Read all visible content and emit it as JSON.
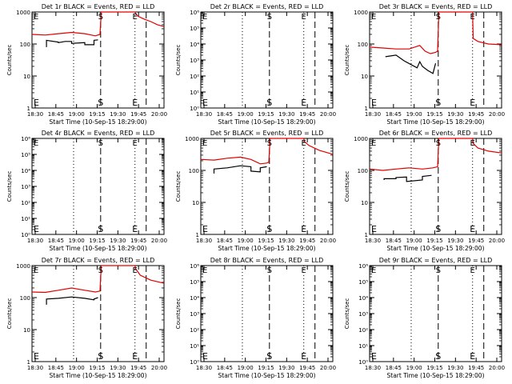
{
  "figure": {
    "x_ticks": [
      "18:30",
      "18:45",
      "19:00",
      "19:15",
      "19:30",
      "19:45",
      "20:00"
    ],
    "xlabel": "Start Time (10-Sep-15 18:29:00)",
    "ylabel": "Counts/sec",
    "colors": {
      "events": "#000000",
      "lld": "#e00000",
      "frame": "#000000"
    },
    "markers": {
      "start": "S",
      "end": "E"
    }
  },
  "chart_data": [
    {
      "type": "line",
      "title": "Det 1r BLACK = Events, RED = LLD",
      "log": true,
      "ylim": [
        1,
        1000
      ],
      "ytick_labels": [
        "1",
        "10",
        "100",
        "1000"
      ],
      "dotted_x": [
        0.0,
        0.315,
        0.78
      ],
      "dash_x": [
        0.52,
        0.865
      ],
      "markers": {
        "start": {
          "x": 0.52,
          "y": 1
        },
        "end": {
          "x": 0.78,
          "y": 1
        }
      },
      "series": [
        {
          "name": "LLD",
          "color": "#e00000",
          "points": [
            [
              0,
              200
            ],
            [
              0.1,
              190
            ],
            [
              0.2,
              210
            ],
            [
              0.3,
              230
            ],
            [
              0.4,
              210
            ],
            [
              0.48,
              180
            ],
            [
              0.515,
              200
            ],
            [
              0.525,
              1000
            ],
            [
              0.78,
              1000
            ],
            [
              0.785,
              900
            ],
            [
              0.8,
              750
            ],
            [
              0.85,
              600
            ],
            [
              0.9,
              500
            ],
            [
              0.95,
              400
            ],
            [
              1.0,
              350
            ]
          ]
        },
        {
          "name": "Events",
          "color": "#000000",
          "points": [
            [
              0.11,
              80
            ],
            [
              0.11,
              130
            ],
            [
              0.2,
              115
            ],
            [
              0.2,
              110
            ],
            [
              0.25,
              120
            ],
            [
              0.3,
              120
            ],
            [
              0.3,
              105
            ],
            [
              0.4,
              110
            ],
            [
              0.4,
              95
            ],
            [
              0.47,
              95
            ],
            [
              0.47,
              130
            ],
            [
              0.5,
              135
            ]
          ]
        }
      ]
    },
    {
      "type": "line",
      "title": "Det 2r BLACK = Events, RED = LLD",
      "log": true,
      "ylim": [
        1,
        1000000
      ],
      "ytick_labels": [
        "10⁰",
        "10¹",
        "10²",
        "10³",
        "10⁴",
        "10⁵",
        "10⁶"
      ],
      "dotted_x": [
        0.0,
        0.315,
        0.78
      ],
      "dash_x": [
        0.52,
        0.865
      ],
      "markers": {
        "start": {
          "x": 0.52,
          "y": 1
        },
        "end": {
          "x": 0.78,
          "y": 1
        }
      },
      "series": []
    },
    {
      "type": "line",
      "title": "Det 3r BLACK = Events, RED = LLD",
      "log": true,
      "ylim": [
        1,
        1000
      ],
      "ytick_labels": [
        "1",
        "10",
        "100",
        "1000"
      ],
      "dotted_x": [
        0.0,
        0.315,
        0.78
      ],
      "dash_x": [
        0.52,
        0.865
      ],
      "markers": {
        "start": {
          "x": 0.52,
          "y": 1
        },
        "end": {
          "x": 0.78,
          "y": 1
        }
      },
      "series": [
        {
          "name": "LLD",
          "color": "#e00000",
          "points": [
            [
              0,
              80
            ],
            [
              0.1,
              75
            ],
            [
              0.2,
              70
            ],
            [
              0.3,
              70
            ],
            [
              0.38,
              90
            ],
            [
              0.42,
              60
            ],
            [
              0.46,
              50
            ],
            [
              0.5,
              55
            ],
            [
              0.515,
              60
            ],
            [
              0.525,
              1000
            ],
            [
              0.78,
              1000
            ],
            [
              0.785,
              150
            ],
            [
              0.82,
              120
            ],
            [
              0.9,
              100
            ],
            [
              1.0,
              95
            ]
          ]
        },
        {
          "name": "Events",
          "color": "#000000",
          "points": [
            [
              0.12,
              40
            ],
            [
              0.2,
              45
            ],
            [
              0.26,
              30
            ],
            [
              0.32,
              22
            ],
            [
              0.36,
              18
            ],
            [
              0.38,
              28
            ],
            [
              0.4,
              20
            ],
            [
              0.44,
              15
            ],
            [
              0.48,
              12
            ],
            [
              0.5,
              25
            ]
          ]
        }
      ]
    },
    {
      "type": "line",
      "title": "Det 4r BLACK = Events, RED = LLD",
      "log": true,
      "ylim": [
        1,
        1000000
      ],
      "ytick_labels": [
        "10⁰",
        "10¹",
        "10²",
        "10³",
        "10⁴",
        "10⁵",
        "10⁶"
      ],
      "dotted_x": [
        0.0,
        0.315,
        0.78
      ],
      "dash_x": [
        0.52,
        0.865
      ],
      "markers": {
        "start": {
          "x": 0.52,
          "y": 1
        },
        "end": {
          "x": 0.78,
          "y": 1
        }
      },
      "series": []
    },
    {
      "type": "line",
      "title": "Det 5r BLACK = Events, RED = LLD",
      "log": true,
      "ylim": [
        1,
        1000
      ],
      "ytick_labels": [
        "1",
        "10",
        "100",
        "1000"
      ],
      "dotted_x": [
        0.0,
        0.315,
        0.78
      ],
      "dash_x": [
        0.52,
        0.865
      ],
      "markers": {
        "start": {
          "x": 0.52,
          "y": 1
        },
        "end": {
          "x": 0.78,
          "y": 1
        }
      },
      "series": [
        {
          "name": "LLD",
          "color": "#e00000",
          "points": [
            [
              0,
              220
            ],
            [
              0.1,
              210
            ],
            [
              0.2,
              240
            ],
            [
              0.3,
              260
            ],
            [
              0.38,
              220
            ],
            [
              0.45,
              160
            ],
            [
              0.5,
              170
            ],
            [
              0.515,
              180
            ],
            [
              0.525,
              1000
            ],
            [
              0.78,
              1000
            ],
            [
              0.785,
              800
            ],
            [
              0.82,
              600
            ],
            [
              0.9,
              420
            ],
            [
              1.0,
              320
            ]
          ]
        },
        {
          "name": "Events",
          "color": "#000000",
          "points": [
            [
              0.1,
              80
            ],
            [
              0.1,
              110
            ],
            [
              0.2,
              120
            ],
            [
              0.3,
              140
            ],
            [
              0.38,
              130
            ],
            [
              0.38,
              95
            ],
            [
              0.45,
              90
            ],
            [
              0.45,
              120
            ],
            [
              0.5,
              130
            ]
          ]
        }
      ]
    },
    {
      "type": "line",
      "title": "Det 6r BLACK = Events, RED = LLD",
      "log": true,
      "ylim": [
        1,
        1000
      ],
      "ytick_labels": [
        "1",
        "10",
        "100",
        "1000"
      ],
      "dotted_x": [
        0.0,
        0.315,
        0.78
      ],
      "dash_x": [
        0.52,
        0.865
      ],
      "markers": {
        "start": {
          "x": 0.52,
          "y": 1
        },
        "end": {
          "x": 0.78,
          "y": 1
        }
      },
      "series": [
        {
          "name": "LLD",
          "color": "#e00000",
          "points": [
            [
              0,
              110
            ],
            [
              0.1,
              100
            ],
            [
              0.2,
              110
            ],
            [
              0.3,
              120
            ],
            [
              0.4,
              110
            ],
            [
              0.48,
              120
            ],
            [
              0.515,
              130
            ],
            [
              0.525,
              1000
            ],
            [
              0.78,
              1000
            ],
            [
              0.785,
              700
            ],
            [
              0.82,
              500
            ],
            [
              0.9,
              400
            ],
            [
              1.0,
              350
            ]
          ]
        },
        {
          "name": "Events",
          "color": "#000000",
          "points": [
            [
              0.11,
              50
            ],
            [
              0.11,
              55
            ],
            [
              0.2,
              55
            ],
            [
              0.2,
              60
            ],
            [
              0.28,
              62
            ],
            [
              0.28,
              45
            ],
            [
              0.4,
              50
            ],
            [
              0.4,
              65
            ],
            [
              0.47,
              70
            ]
          ]
        }
      ]
    },
    {
      "type": "line",
      "title": "Det 7r BLACK = Events, RED = LLD",
      "log": true,
      "ylim": [
        1,
        1000
      ],
      "ytick_labels": [
        "1",
        "10",
        "100",
        "1000"
      ],
      "dotted_x": [
        0.0,
        0.315,
        0.78
      ],
      "dash_x": [
        0.52,
        0.865
      ],
      "markers": {
        "start": {
          "x": 0.52,
          "y": 1
        },
        "end": {
          "x": 0.78,
          "y": 1
        }
      },
      "series": [
        {
          "name": "LLD",
          "color": "#e00000",
          "points": [
            [
              0,
              150
            ],
            [
              0.1,
              145
            ],
            [
              0.2,
              170
            ],
            [
              0.3,
              200
            ],
            [
              0.4,
              170
            ],
            [
              0.48,
              150
            ],
            [
              0.515,
              160
            ],
            [
              0.525,
              1000
            ],
            [
              0.78,
              1000
            ],
            [
              0.785,
              800
            ],
            [
              0.82,
              500
            ],
            [
              0.9,
              350
            ],
            [
              1.0,
              280
            ]
          ]
        },
        {
          "name": "Events",
          "color": "#000000",
          "points": [
            [
              0.11,
              60
            ],
            [
              0.11,
              90
            ],
            [
              0.2,
              95
            ],
            [
              0.3,
              105
            ],
            [
              0.4,
              95
            ],
            [
              0.47,
              85
            ],
            [
              0.47,
              90
            ],
            [
              0.5,
              100
            ]
          ]
        }
      ]
    },
    {
      "type": "line",
      "title": "Det 8r BLACK = Events, RED = LLD",
      "log": true,
      "ylim": [
        1,
        1000000
      ],
      "ytick_labels": [
        "10⁰",
        "10¹",
        "10²",
        "10³",
        "10⁴",
        "10⁵",
        "10⁶"
      ],
      "dotted_x": [
        0.0,
        0.315,
        0.78
      ],
      "dash_x": [
        0.52,
        0.865
      ],
      "markers": {
        "start": {
          "x": 0.52,
          "y": 1
        },
        "end": {
          "x": 0.78,
          "y": 1
        }
      },
      "series": []
    },
    {
      "type": "line",
      "title": "Det 9r BLACK = Events, RED = LLD",
      "log": true,
      "ylim": [
        1,
        1000000
      ],
      "ytick_labels": [
        "10⁰",
        "10¹",
        "10²",
        "10³",
        "10⁴",
        "10⁵",
        "10⁶"
      ],
      "dotted_x": [
        0.0,
        0.315,
        0.78
      ],
      "dash_x": [
        0.52,
        0.865
      ],
      "markers": {
        "start": {
          "x": 0.52,
          "y": 1
        },
        "end": {
          "x": 0.78,
          "y": 1
        }
      },
      "series": []
    }
  ]
}
